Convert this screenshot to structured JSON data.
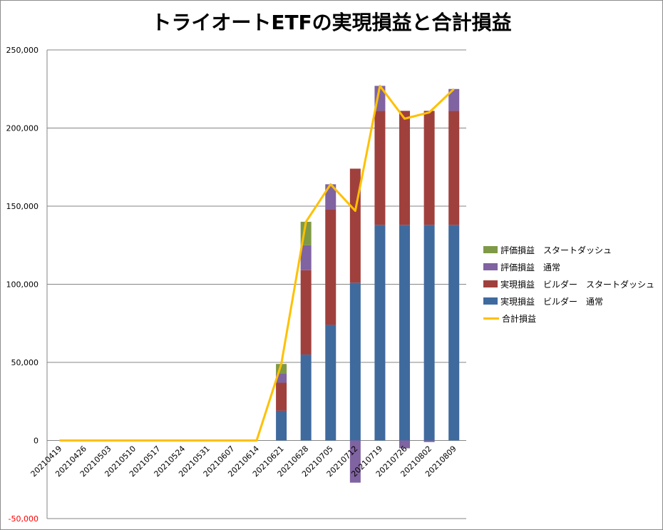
{
  "colors": {
    "eval_start": "#7f9a46",
    "eval_normal": "#8063a1",
    "real_start": "#a0403d",
    "real_normal": "#3f6a9e",
    "total": "#ffc000",
    "grid": "#868686",
    "negative_tick": "#ff0000"
  },
  "chart_data": {
    "type": "bar",
    "title": "トライオートETFの実現損益と合計損益",
    "xlabel": "",
    "ylabel": "",
    "ylim": [
      -50000,
      250000
    ],
    "yticks": [
      {
        "value": -50000,
        "label": "-50,000"
      },
      {
        "value": 0,
        "label": "0"
      },
      {
        "value": 50000,
        "label": "50,000"
      },
      {
        "value": 100000,
        "label": "100,000"
      },
      {
        "value": 150000,
        "label": "150,000"
      },
      {
        "value": 200000,
        "label": "200,000"
      },
      {
        "value": 250000,
        "label": "250,000"
      }
    ],
    "grid": true,
    "legend_position": "right",
    "stacked": true,
    "categories": [
      "20210419",
      "20210426",
      "20210503",
      "20210510",
      "20210517",
      "20210524",
      "20210531",
      "20210607",
      "20210614",
      "20210621",
      "20210628",
      "20210705",
      "20210712",
      "20210719",
      "20210726",
      "20210802",
      "20210809"
    ],
    "series": [
      {
        "name": "実現損益 ビルダー 通常",
        "kind": "bar",
        "color_key": "real_normal",
        "values": [
          0,
          0,
          0,
          0,
          0,
          0,
          0,
          0,
          0,
          19000,
          55000,
          74000,
          101000,
          138000,
          138000,
          138000,
          138000
        ]
      },
      {
        "name": "実現損益 ビルダー スタートダッシュ",
        "kind": "bar",
        "color_key": "real_start",
        "values": [
          0,
          0,
          0,
          0,
          0,
          0,
          0,
          0,
          0,
          18000,
          54000,
          74000,
          73000,
          73000,
          73000,
          73000,
          73000
        ]
      },
      {
        "name": "評価損益 通常",
        "kind": "bar",
        "color_key": "eval_normal",
        "values": [
          0,
          0,
          0,
          0,
          0,
          0,
          0,
          0,
          0,
          6000,
          16000,
          16000,
          -27000,
          16000,
          -5000,
          -1000,
          14000
        ]
      },
      {
        "name": "評価損益 スタートダッシュ",
        "kind": "bar",
        "color_key": "eval_start",
        "values": [
          0,
          0,
          0,
          0,
          0,
          0,
          0,
          0,
          0,
          6000,
          15000,
          0,
          0,
          0,
          0,
          0,
          0
        ]
      },
      {
        "name": "合計損益",
        "kind": "line",
        "color_key": "total",
        "values": [
          0,
          0,
          0,
          0,
          0,
          0,
          0,
          0,
          0,
          49000,
          140000,
          164000,
          147000,
          227000,
          206000,
          210000,
          225000
        ]
      }
    ],
    "legend": [
      {
        "label": "評価損益　スタートダッシュ",
        "color_key": "eval_start",
        "kind": "bar"
      },
      {
        "label": "評価損益　通常",
        "color_key": "eval_normal",
        "kind": "bar"
      },
      {
        "label": "実現損益　ビルダー　スタートダッシュ",
        "color_key": "real_start",
        "kind": "bar"
      },
      {
        "label": "実現損益　ビルダー　通常",
        "color_key": "real_normal",
        "kind": "bar"
      },
      {
        "label": "合計損益",
        "color_key": "total",
        "kind": "line"
      }
    ]
  }
}
